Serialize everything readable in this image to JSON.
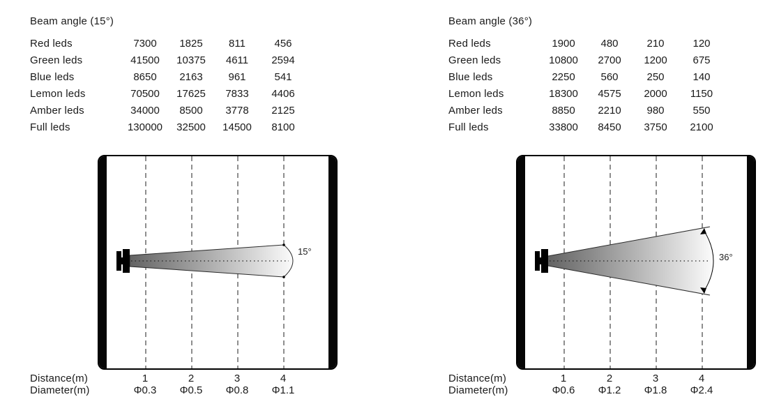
{
  "figure": {
    "panels": [
      {
        "title": "Beam angle (15°)",
        "angle": "15°",
        "rows": [
          {
            "label": "Red leds",
            "values": [
              "7300",
              "1825",
              "811",
              "456"
            ]
          },
          {
            "label": "Green leds",
            "values": [
              "41500",
              "10375",
              "4611",
              "2594"
            ]
          },
          {
            "label": "Blue leds",
            "values": [
              "8650",
              "2163",
              "961",
              "541"
            ]
          },
          {
            "label": "Lemon leds",
            "values": [
              "70500",
              "17625",
              "7833",
              "4406"
            ]
          },
          {
            "label": "Amber leds",
            "values": [
              "34000",
              "8500",
              "3778",
              "2125"
            ]
          },
          {
            "label": "Full leds",
            "values": [
              "130000",
              "32500",
              "14500",
              "8100"
            ]
          }
        ],
        "distance_label": "Distance(m)",
        "diameter_label": "Diameter(m)",
        "distances": [
          "1",
          "2",
          "3",
          "4"
        ],
        "diameters": [
          "Φ0.3",
          "Φ0.5",
          "Φ0.8",
          "Φ1.1"
        ]
      },
      {
        "title": "Beam angle (36°)",
        "angle": "36°",
        "rows": [
          {
            "label": "Red leds",
            "values": [
              "1900",
              "480",
              "210",
              "120"
            ]
          },
          {
            "label": "Green leds",
            "values": [
              "10800",
              "2700",
              "1200",
              "675"
            ]
          },
          {
            "label": "Blue leds",
            "values": [
              "2250",
              "560",
              "250",
              "140"
            ]
          },
          {
            "label": "Lemon leds",
            "values": [
              "18300",
              "4575",
              "2000",
              "1150"
            ]
          },
          {
            "label": "Amber leds",
            "values": [
              "8850",
              "2210",
              "980",
              "550"
            ]
          },
          {
            "label": "Full leds",
            "values": [
              "33800",
              "8450",
              "3750",
              "2100"
            ]
          }
        ],
        "distance_label": "Distance(m)",
        "diameter_label": "Diameter(m)",
        "distances": [
          "1",
          "2",
          "3",
          "4"
        ],
        "diameters": [
          "Φ0.6",
          "Φ1.2",
          "Φ1.8",
          "Φ2.4"
        ]
      }
    ],
    "colors": {
      "ink": "#1a1a1a",
      "beam_dark": "#636363",
      "beam_light": "#fbfbfb",
      "gridline": "#444444",
      "wall": "#060606"
    }
  }
}
